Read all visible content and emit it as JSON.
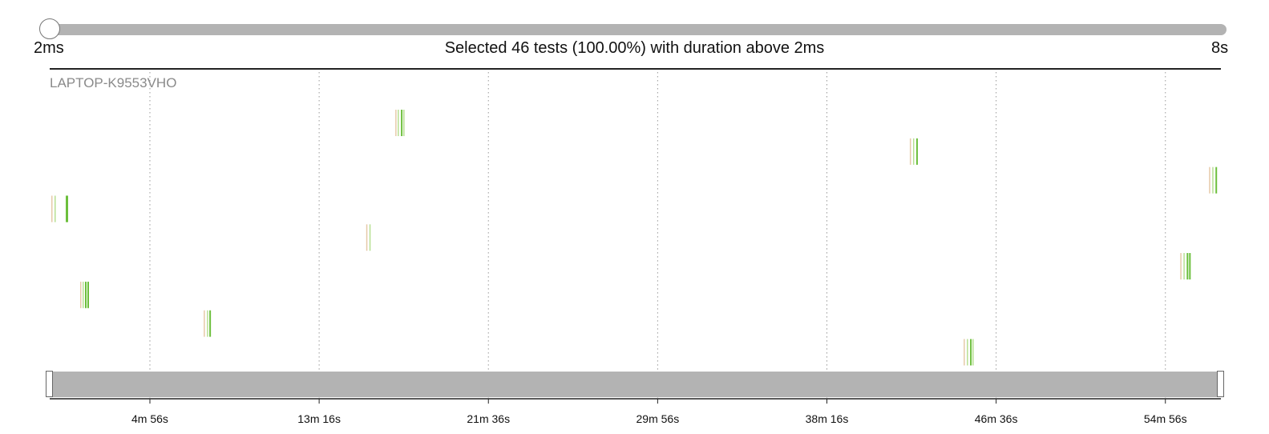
{
  "duration_filter": {
    "min_label": "2ms",
    "max_label": "8s",
    "summary": "Selected 46 tests (100.00%) with duration above 2ms",
    "selected_fraction": 0.0
  },
  "timeline": {
    "host": "LAPTOP-K9553VHO",
    "time_ticks": [
      "4m 56s",
      "13m 16s",
      "21m 36s",
      "29m 56s",
      "38m 16s",
      "46m 36s",
      "54m 56s"
    ],
    "tick_seconds": [
      296,
      796,
      1296,
      1796,
      2296,
      2796,
      3296
    ],
    "domain_seconds": [
      0,
      3460
    ],
    "lane_count": 10,
    "colors": {
      "pass_strong": "#6cbf3c",
      "pass_light": "#b7df92",
      "faint": "#e6c9a8"
    },
    "test_bursts": [
      {
        "lane": 3,
        "start_s": 0,
        "marks": [
          [
            2,
            "faint"
          ],
          [
            6,
            "pass_light"
          ],
          [
            20,
            "pass_strong"
          ],
          [
            21,
            "pass_strong"
          ]
        ]
      },
      {
        "lane": 6,
        "start_s": 90,
        "marks": [
          [
            0,
            "faint"
          ],
          [
            3,
            "pass_light"
          ],
          [
            6,
            "pass_strong"
          ],
          [
            9,
            "pass_strong"
          ]
        ]
      },
      {
        "lane": 7,
        "start_s": 455,
        "marks": [
          [
            0,
            "faint"
          ],
          [
            4,
            "pass_light"
          ],
          [
            7,
            "pass_strong"
          ]
        ]
      },
      {
        "lane": 4,
        "start_s": 935,
        "marks": [
          [
            0,
            "faint"
          ],
          [
            4,
            "pass_light"
          ]
        ]
      },
      {
        "lane": 0,
        "start_s": 1021,
        "marks": [
          [
            0,
            "faint"
          ],
          [
            3,
            "pass_light"
          ],
          [
            7,
            "pass_strong"
          ],
          [
            10,
            "pass_light"
          ]
        ]
      },
      {
        "lane": 1,
        "start_s": 2541,
        "marks": [
          [
            0,
            "faint"
          ],
          [
            4,
            "pass_light"
          ],
          [
            8,
            "pass_strong"
          ]
        ]
      },
      {
        "lane": 8,
        "start_s": 2700,
        "marks": [
          [
            0,
            "faint"
          ],
          [
            4,
            "pass_light"
          ],
          [
            8,
            "pass_strong"
          ],
          [
            11,
            "pass_light"
          ]
        ]
      },
      {
        "lane": 5,
        "start_s": 3340,
        "marks": [
          [
            0,
            "faint"
          ],
          [
            4,
            "pass_light"
          ],
          [
            8,
            "pass_strong"
          ],
          [
            11,
            "pass_strong"
          ]
        ]
      },
      {
        "lane": 2,
        "start_s": 3425,
        "marks": [
          [
            0,
            "faint"
          ],
          [
            4,
            "pass_light"
          ],
          [
            8,
            "pass_strong"
          ]
        ]
      }
    ]
  }
}
